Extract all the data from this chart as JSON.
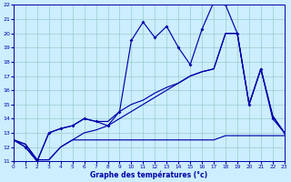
{
  "xlabel": "Graphe des températures (°c)",
  "xlim": [
    0,
    23
  ],
  "ylim": [
    11,
    22
  ],
  "yticks": [
    11,
    12,
    13,
    14,
    15,
    16,
    17,
    18,
    19,
    20,
    21,
    22
  ],
  "xticks": [
    0,
    1,
    2,
    3,
    4,
    5,
    6,
    7,
    8,
    9,
    10,
    11,
    12,
    13,
    14,
    15,
    16,
    17,
    18,
    19,
    20,
    21,
    22,
    23
  ],
  "bg_color": "#cceeff",
  "grid_color": "#99cccc",
  "line_color": "#0000aa",
  "s1_x": [
    0,
    1,
    2,
    3,
    4,
    5,
    6,
    7,
    8,
    9,
    10,
    11,
    12,
    13,
    14,
    15,
    16,
    17,
    18,
    19,
    20,
    21,
    22,
    23
  ],
  "s1_y": [
    12.5,
    12.0,
    11.0,
    13.0,
    13.3,
    13.5,
    14.0,
    13.8,
    13.5,
    14.5,
    19.5,
    20.8,
    19.7,
    20.5,
    19.0,
    17.8,
    20.3,
    22.2,
    22.0,
    20.0,
    15.0,
    17.5,
    14.0,
    13.0
  ],
  "s2_x": [
    0,
    1,
    2,
    3,
    4,
    5,
    6,
    7,
    8,
    9,
    10,
    11,
    12,
    13,
    14,
    15,
    16,
    17,
    18,
    19,
    20,
    21,
    22,
    23
  ],
  "s2_y": [
    12.5,
    12.2,
    11.1,
    11.1,
    12.0,
    12.5,
    12.5,
    12.5,
    12.5,
    12.5,
    12.5,
    12.5,
    12.5,
    12.5,
    12.5,
    12.5,
    12.5,
    12.5,
    12.8,
    12.8,
    12.8,
    12.8,
    12.8,
    12.8
  ],
  "s3_x": [
    0,
    1,
    2,
    3,
    4,
    5,
    6,
    7,
    8,
    9,
    10,
    11,
    12,
    13,
    14,
    15,
    16,
    17,
    18,
    19,
    20,
    21,
    22,
    23
  ],
  "s3_y": [
    12.5,
    12.0,
    11.0,
    13.0,
    13.3,
    13.5,
    14.0,
    13.8,
    13.8,
    14.5,
    15.0,
    15.3,
    15.8,
    16.2,
    16.5,
    17.0,
    17.3,
    17.5,
    20.0,
    20.0,
    15.0,
    17.5,
    14.2,
    13.0
  ],
  "s4_x": [
    0,
    1,
    2,
    3,
    4,
    5,
    6,
    7,
    8,
    9,
    10,
    11,
    12,
    13,
    14,
    15,
    16,
    17,
    18,
    19,
    20,
    21,
    22,
    23
  ],
  "s4_y": [
    12.5,
    12.2,
    11.1,
    11.1,
    12.0,
    12.5,
    13.0,
    13.2,
    13.5,
    14.0,
    14.5,
    15.0,
    15.5,
    16.0,
    16.5,
    17.0,
    17.3,
    17.5,
    20.0,
    20.0,
    15.0,
    17.5,
    14.2,
    13.0
  ]
}
